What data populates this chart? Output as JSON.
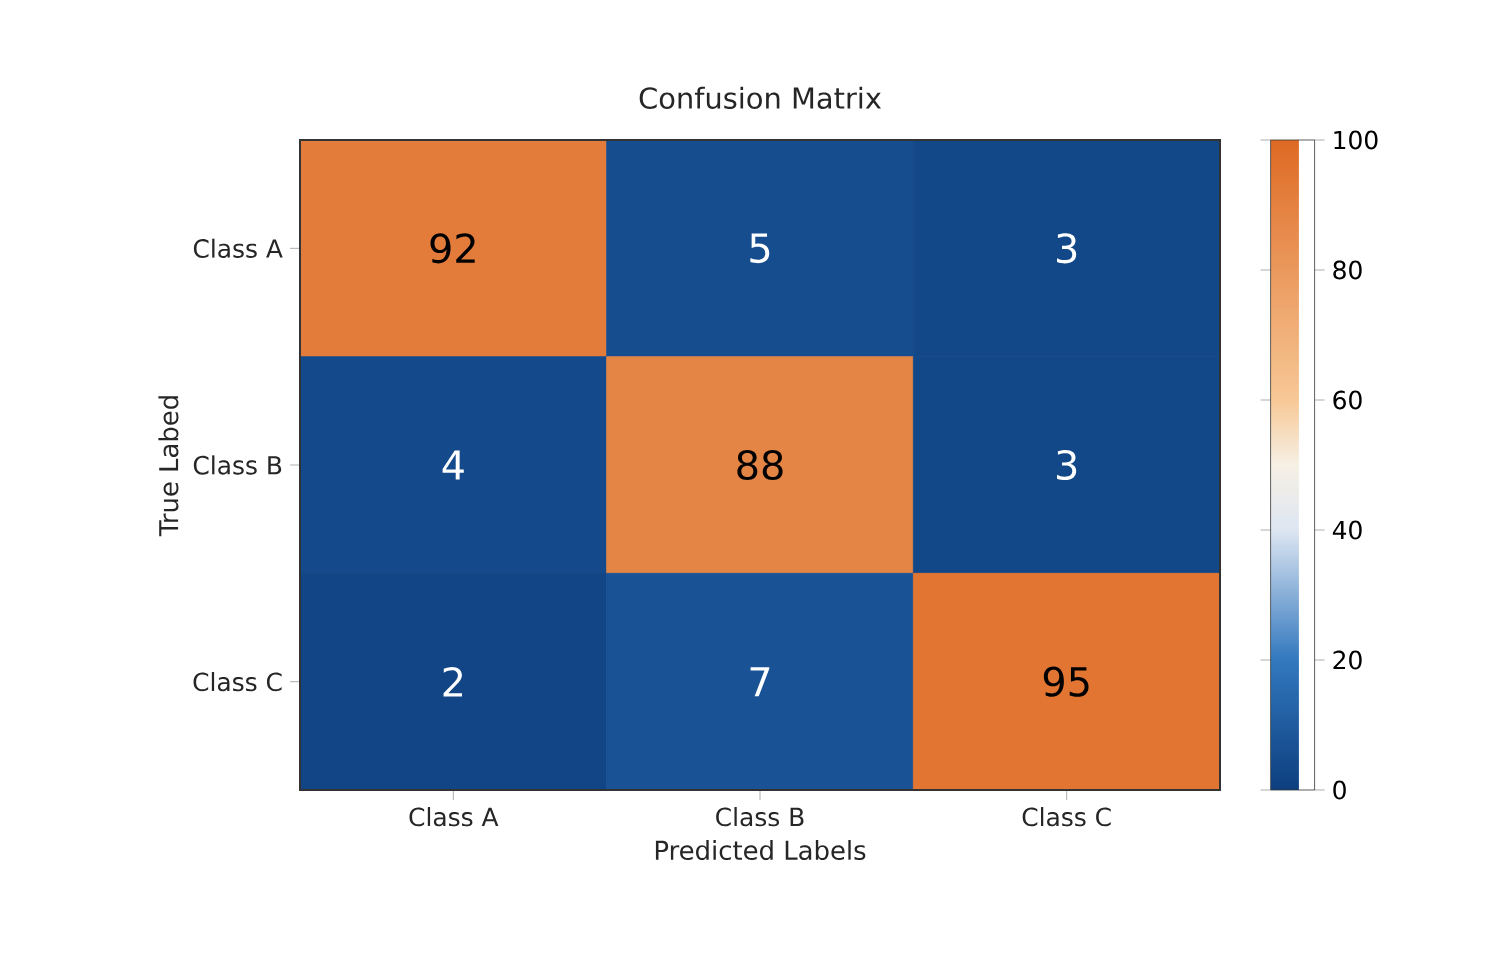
{
  "chart_data": {
    "type": "heatmap",
    "title": "Confusion Matrix",
    "xlabel": "Predicted Labels",
    "ylabel": "True Labed",
    "categories": [
      "Class A",
      "Class B",
      "Class C"
    ],
    "y_categories": [
      "Class A",
      "Class B",
      "Class C"
    ],
    "cells": [
      [
        92,
        5,
        3
      ],
      [
        4,
        88,
        3
      ],
      [
        2,
        7,
        95
      ]
    ],
    "clim": [
      0,
      100
    ],
    "cticks": [
      0,
      20,
      40,
      60,
      80,
      100
    ],
    "data_labels": true
  }
}
